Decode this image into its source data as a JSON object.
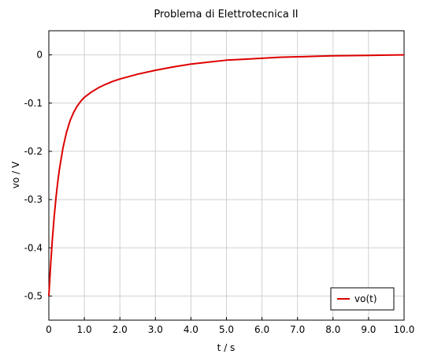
{
  "chart_data": {
    "type": "line",
    "title": "Problema di Elettrotecnica II",
    "xlabel": "t / s",
    "ylabel": "vo / V",
    "xlim": [
      0,
      10
    ],
    "ylim": [
      -0.55,
      0.05
    ],
    "x_ticks": [
      0,
      1,
      2,
      3,
      4,
      5,
      6,
      7,
      8,
      9,
      10
    ],
    "x_tick_labels": [
      "0",
      "1.0",
      "2.0",
      "3.0",
      "4.0",
      "5.0",
      "6.0",
      "7.0",
      "8.0",
      "9.0",
      "10.0"
    ],
    "y_ticks": [
      0,
      -0.1,
      -0.2,
      -0.3,
      -0.4,
      -0.5
    ],
    "y_tick_labels": [
      "0",
      "-0.1",
      "-0.2",
      "-0.3",
      "-0.4",
      "-0.5"
    ],
    "grid": true,
    "legend_position": "bottom-right",
    "series": [
      {
        "name": "vo(t)",
        "color": "#dd0000",
        "x": [
          0,
          0.05,
          0.1,
          0.15,
          0.2,
          0.25,
          0.3,
          0.4,
          0.5,
          0.6,
          0.7,
          0.8,
          0.9,
          1.0,
          1.2,
          1.4,
          1.6,
          1.8,
          2.0,
          2.5,
          3.0,
          3.5,
          4.0,
          4.5,
          5.0,
          5.5,
          6.0,
          6.5,
          7.0,
          7.5,
          8.0,
          8.5,
          9.0,
          9.5,
          10.0
        ],
        "y": [
          -0.5,
          -0.436,
          -0.382,
          -0.336,
          -0.297,
          -0.264,
          -0.236,
          -0.192,
          -0.16,
          -0.136,
          -0.119,
          -0.106,
          -0.096,
          -0.088,
          -0.077,
          -0.068,
          -0.061,
          -0.055,
          -0.05,
          -0.04,
          -0.032,
          -0.025,
          -0.019,
          -0.015,
          -0.011,
          -0.009,
          -0.007,
          -0.005,
          -0.004,
          -0.003,
          -0.002,
          -0.0015,
          -0.001,
          -0.0005,
          0.0
        ]
      }
    ]
  }
}
